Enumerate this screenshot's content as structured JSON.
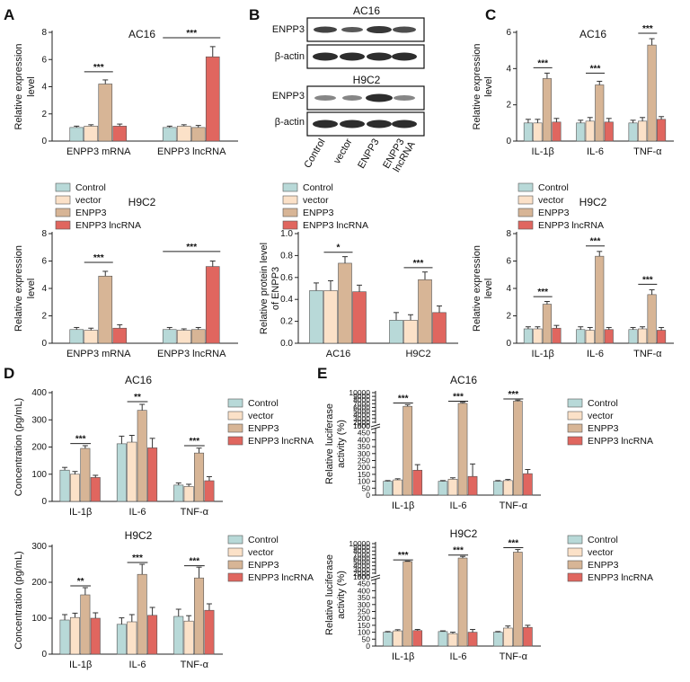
{
  "colors": {
    "control": "#b8d9d8",
    "vector": "#fbe1c8",
    "enpp3": "#d7b596",
    "lnc": "#e0665f",
    "axis": "#222222",
    "blot_band": "#222222"
  },
  "legend_labels": [
    "Control",
    "vector",
    "ENPP3",
    "ENPP3 lncRNA"
  ],
  "panel_letters": [
    "A",
    "B",
    "C",
    "D",
    "E"
  ],
  "blot": {
    "title_ac16": "AC16",
    "title_h9c2": "H9C2",
    "row_labels": [
      "ENPP3",
      "β-actin",
      "ENPP3",
      "β-actin"
    ],
    "lane_labels": [
      "Control",
      "vector",
      "ENPP3",
      "ENPP3 lncRNA"
    ]
  },
  "chart_data": [
    {
      "id": "A1",
      "type": "bar",
      "title": "AC16",
      "ylabel": "Relative expression level",
      "ylim": [
        0,
        8
      ],
      "yticks": [
        0,
        2,
        4,
        6,
        8
      ],
      "categories": [
        "ENPP3 mRNA",
        "ENPP3 lncRNA"
      ],
      "series": [
        {
          "name": "Control",
          "values": [
            1.0,
            1.0
          ],
          "errors": [
            0.1,
            0.1
          ]
        },
        {
          "name": "vector",
          "values": [
            1.1,
            1.1
          ],
          "errors": [
            0.1,
            0.1
          ]
        },
        {
          "name": "ENPP3",
          "values": [
            4.2,
            1.0
          ],
          "errors": [
            0.3,
            0.15
          ]
        },
        {
          "name": "ENPP3 lncRNA",
          "values": [
            1.1,
            6.2
          ],
          "errors": [
            0.15,
            0.75
          ]
        }
      ],
      "sig": [
        {
          "cat": 0,
          "from": 1,
          "to": 2,
          "y": 5.1,
          "label": "***"
        },
        {
          "cat": 1,
          "from": 0,
          "to": 3,
          "y": 7.6,
          "label": "***"
        }
      ]
    },
    {
      "id": "A2",
      "type": "bar",
      "title": "H9C2",
      "ylabel": "Relative expression level",
      "ylim": [
        0,
        8
      ],
      "yticks": [
        0,
        2,
        4,
        6,
        8
      ],
      "categories": [
        "ENPP3 mRNA",
        "ENPP3 lncRNA"
      ],
      "series": [
        {
          "name": "Control",
          "values": [
            1.0,
            1.0
          ],
          "errors": [
            0.15,
            0.15
          ]
        },
        {
          "name": "vector",
          "values": [
            0.95,
            0.95
          ],
          "errors": [
            0.15,
            0.1
          ]
        },
        {
          "name": "ENPP3",
          "values": [
            4.9,
            1.0
          ],
          "errors": [
            0.35,
            0.15
          ]
        },
        {
          "name": "ENPP3 lncRNA",
          "values": [
            1.1,
            5.6
          ],
          "errors": [
            0.25,
            0.4
          ]
        }
      ],
      "sig": [
        {
          "cat": 0,
          "from": 1,
          "to": 2,
          "y": 5.9,
          "label": "***"
        },
        {
          "cat": 1,
          "from": 0,
          "to": 3,
          "y": 6.7,
          "label": "***"
        }
      ]
    },
    {
      "id": "B2",
      "type": "bar",
      "title": "",
      "ylabel": "Relative protein level of ENPP3",
      "ylim": [
        0,
        1.0
      ],
      "yticks": [
        0.0,
        0.2,
        0.4,
        0.6,
        0.8,
        1.0
      ],
      "categories": [
        "AC16",
        "H9C2"
      ],
      "series": [
        {
          "name": "Control",
          "values": [
            0.48,
            0.21
          ],
          "errors": [
            0.07,
            0.07
          ]
        },
        {
          "name": "vector",
          "values": [
            0.48,
            0.21
          ],
          "errors": [
            0.09,
            0.05
          ]
        },
        {
          "name": "ENPP3",
          "values": [
            0.73,
            0.58
          ],
          "errors": [
            0.06,
            0.07
          ]
        },
        {
          "name": "ENPP3 lncRNA",
          "values": [
            0.47,
            0.28
          ],
          "errors": [
            0.06,
            0.06
          ]
        }
      ],
      "sig": [
        {
          "cat": 0,
          "from": 1,
          "to": 2,
          "y": 0.83,
          "label": "*"
        },
        {
          "cat": 1,
          "from": 1,
          "to": 2,
          "y": 0.69,
          "label": "***"
        }
      ]
    },
    {
      "id": "C1",
      "type": "bar",
      "title": "AC16",
      "ylabel": "Relative expression level",
      "ylim": [
        0,
        6
      ],
      "yticks": [
        0,
        2,
        4,
        6
      ],
      "categories": [
        "IL-1β",
        "IL-6",
        "TNF-α"
      ],
      "series": [
        {
          "name": "Control",
          "values": [
            1.0,
            1.0,
            1.0
          ],
          "errors": [
            0.2,
            0.15,
            0.15
          ]
        },
        {
          "name": "vector",
          "values": [
            1.0,
            1.1,
            1.1
          ],
          "errors": [
            0.2,
            0.2,
            0.2
          ]
        },
        {
          "name": "ENPP3",
          "values": [
            3.45,
            3.1,
            5.3
          ],
          "errors": [
            0.3,
            0.2,
            0.35
          ]
        },
        {
          "name": "ENPP3 lncRNA",
          "values": [
            1.05,
            1.05,
            1.2
          ],
          "errors": [
            0.2,
            0.2,
            0.15
          ]
        }
      ],
      "sig": [
        {
          "cat": 0,
          "from": 1,
          "to": 2,
          "y": 4.05,
          "label": "***"
        },
        {
          "cat": 1,
          "from": 1,
          "to": 2,
          "y": 3.75,
          "label": "***"
        },
        {
          "cat": 2,
          "from": 1,
          "to": 2,
          "y": 5.95,
          "label": "***"
        }
      ]
    },
    {
      "id": "C2",
      "type": "bar",
      "title": "H9C2",
      "ylabel": "Relative expression level",
      "ylim": [
        0,
        8
      ],
      "yticks": [
        0,
        2,
        4,
        6,
        8
      ],
      "categories": [
        "IL-1β",
        "IL-6",
        "TNF-α"
      ],
      "series": [
        {
          "name": "Control",
          "values": [
            1.05,
            1.0,
            1.0
          ],
          "errors": [
            0.15,
            0.2,
            0.15
          ]
        },
        {
          "name": "vector",
          "values": [
            1.05,
            0.95,
            1.05
          ],
          "errors": [
            0.15,
            0.2,
            0.15
          ]
        },
        {
          "name": "ENPP3",
          "values": [
            2.85,
            6.35,
            3.55
          ],
          "errors": [
            0.2,
            0.35,
            0.35
          ]
        },
        {
          "name": "ENPP3 lncRNA",
          "values": [
            1.1,
            1.0,
            0.95
          ],
          "errors": [
            0.2,
            0.15,
            0.2
          ]
        }
      ],
      "sig": [
        {
          "cat": 0,
          "from": 1,
          "to": 2,
          "y": 3.4,
          "label": "***"
        },
        {
          "cat": 1,
          "from": 1,
          "to": 2,
          "y": 7.1,
          "label": "***"
        },
        {
          "cat": 2,
          "from": 1,
          "to": 2,
          "y": 4.3,
          "label": "***"
        }
      ]
    },
    {
      "id": "D1",
      "type": "bar",
      "title": "AC16",
      "ylabel": "Concentration (pg/mL)",
      "ylim": [
        0,
        400
      ],
      "yticks": [
        0,
        100,
        200,
        300,
        400
      ],
      "categories": [
        "IL-1β",
        "IL-6",
        "TNF-α"
      ],
      "series": [
        {
          "name": "Control",
          "values": [
            115,
            212,
            60
          ],
          "errors": [
            10,
            28,
            8
          ]
        },
        {
          "name": "vector",
          "values": [
            100,
            218,
            55
          ],
          "errors": [
            10,
            25,
            8
          ]
        },
        {
          "name": "ENPP3",
          "values": [
            195,
            335,
            178
          ],
          "errors": [
            10,
            22,
            18
          ]
        },
        {
          "name": "ENPP3 lncRNA",
          "values": [
            88,
            197,
            76
          ],
          "errors": [
            8,
            35,
            15
          ]
        }
      ],
      "sig": [
        {
          "cat": 0,
          "from": 1,
          "to": 2,
          "y": 213,
          "label": "***"
        },
        {
          "cat": 1,
          "from": 1,
          "to": 2,
          "y": 367,
          "label": "**"
        },
        {
          "cat": 2,
          "from": 1,
          "to": 2,
          "y": 205,
          "label": "***"
        }
      ]
    },
    {
      "id": "D2",
      "type": "bar",
      "title": "H9C2",
      "ylabel": "Concentration (pg/mL)",
      "ylim": [
        0,
        300
      ],
      "yticks": [
        0,
        100,
        200,
        300
      ],
      "categories": [
        "IL-1β",
        "IL-6",
        "TNF-α"
      ],
      "series": [
        {
          "name": "Control",
          "values": [
            95,
            83,
            105
          ],
          "errors": [
            15,
            18,
            20
          ]
        },
        {
          "name": "vector",
          "values": [
            102,
            90,
            92
          ],
          "errors": [
            12,
            20,
            15
          ]
        },
        {
          "name": "ENPP3",
          "values": [
            165,
            222,
            212
          ],
          "errors": [
            20,
            28,
            30
          ]
        },
        {
          "name": "ENPP3 lncRNA",
          "values": [
            100,
            108,
            122
          ],
          "errors": [
            15,
            22,
            18
          ]
        }
      ],
      "sig": [
        {
          "cat": 0,
          "from": 1,
          "to": 2,
          "y": 190,
          "label": "**"
        },
        {
          "cat": 1,
          "from": 1,
          "to": 2,
          "y": 255,
          "label": "***"
        },
        {
          "cat": 2,
          "from": 1,
          "to": 2,
          "y": 246,
          "label": "***"
        }
      ]
    },
    {
      "id": "E1",
      "type": "bar",
      "title": "AC16",
      "ylabel": "Relative luciferase activity (%)",
      "scale": "broken",
      "break": [
        500,
        1000
      ],
      "ylim": [
        0,
        10000
      ],
      "yticks": [
        0,
        50,
        100,
        150,
        200,
        250,
        300,
        350,
        400,
        450,
        500,
        1000,
        2000,
        3000,
        4000,
        5000,
        6000,
        7000,
        8000,
        9000,
        10000
      ],
      "categories": [
        "IL-1β",
        "IL-6",
        "TNF-α"
      ],
      "series": [
        {
          "name": "Control",
          "values": [
            100,
            100,
            100
          ],
          "errors": [
            5,
            5,
            5
          ]
        },
        {
          "name": "vector",
          "values": [
            110,
            115,
            105
          ],
          "errors": [
            8,
            10,
            8
          ]
        },
        {
          "name": "ENPP3",
          "values": [
            6300,
            7100,
            7700
          ],
          "errors": [
            450,
            280,
            280
          ]
        },
        {
          "name": "ENPP3 lncRNA",
          "values": [
            180,
            135,
            155
          ],
          "errors": [
            40,
            90,
            30
          ]
        }
      ],
      "sig": [
        {
          "cat": 0,
          "from": 1,
          "to": 2,
          "y": 7200,
          "label": "***"
        },
        {
          "cat": 1,
          "from": 1,
          "to": 2,
          "y": 7700,
          "label": "***"
        },
        {
          "cat": 2,
          "from": 1,
          "to": 2,
          "y": 8300,
          "label": "***"
        }
      ]
    },
    {
      "id": "E2",
      "type": "bar",
      "title": "H9C2",
      "ylabel": "Relative luciferase activity (%)",
      "scale": "broken",
      "break": [
        500,
        1000
      ],
      "ylim": [
        0,
        10000
      ],
      "yticks": [
        0,
        50,
        100,
        150,
        200,
        250,
        300,
        350,
        400,
        450,
        500,
        1000,
        2000,
        3000,
        4000,
        5000,
        6000,
        7000,
        8000,
        9000,
        10000
      ],
      "categories": [
        "IL-1β",
        "IL-6",
        "TNF-α"
      ],
      "series": [
        {
          "name": "Control",
          "values": [
            100,
            105,
            100
          ],
          "errors": [
            5,
            5,
            5
          ]
        },
        {
          "name": "vector",
          "values": [
            110,
            90,
            130
          ],
          "errors": [
            8,
            10,
            15
          ]
        },
        {
          "name": "ENPP3",
          "values": [
            5150,
            6100,
            7700
          ],
          "errors": [
            120,
            450,
            700
          ]
        },
        {
          "name": "ENPP3 lncRNA",
          "values": [
            112,
            100,
            135
          ],
          "errors": [
            8,
            20,
            15
          ]
        }
      ],
      "sig": [
        {
          "cat": 0,
          "from": 1,
          "to": 2,
          "y": 5600,
          "label": "***"
        },
        {
          "cat": 1,
          "from": 1,
          "to": 2,
          "y": 6900,
          "label": "***"
        },
        {
          "cat": 2,
          "from": 1,
          "to": 2,
          "y": 8900,
          "label": "***"
        }
      ]
    }
  ]
}
